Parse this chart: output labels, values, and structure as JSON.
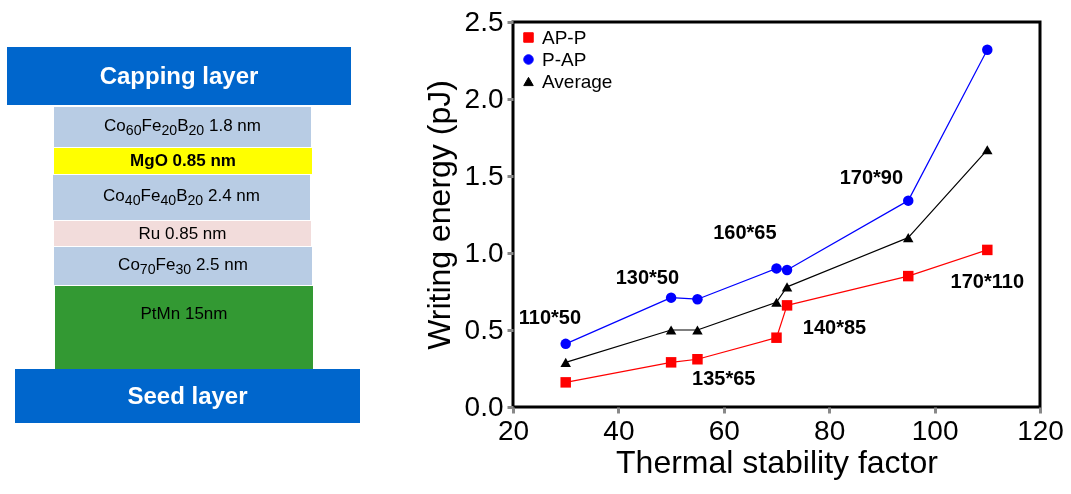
{
  "chart_data": [
    {
      "type": "other",
      "annotations": [
        "Capping layer",
        "Co$_{60}$Fe$_{20}$B$_{20}$ 1.8 nm",
        "MgO 0.85 nm",
        "Co$_{40}$Fe$_{40}$B$_{20}$ 2.4 nm",
        "Ru 0.85 nm",
        "Co$_{70}$Fe$_{30}$ 2.5 nm",
        "PtMn 15nm",
        "Seed layer"
      ]
    },
    {
      "type": "line",
      "xlabel": "Thermal stability factor",
      "ylabel": "Writing energy (pJ)",
      "x": [
        30,
        50,
        55,
        70,
        72,
        95,
        110
      ],
      "series": [
        {
          "name": "AP-P",
          "color": "#ff0000",
          "marker": "square",
          "values": [
            0.16,
            0.29,
            0.31,
            0.45,
            0.66,
            0.85,
            1.02
          ]
        },
        {
          "name": "P-AP",
          "color": "#0000ff",
          "marker": "circle",
          "values": [
            0.41,
            0.71,
            0.7,
            0.9,
            0.89,
            1.34,
            2.32
          ]
        },
        {
          "name": "Average",
          "color": "#000000",
          "marker": "triangle",
          "values": [
            0.29,
            0.5,
            0.5,
            0.68,
            0.78,
            1.1,
            1.67
          ]
        }
      ],
      "xlim": [
        20,
        120
      ],
      "xticks": [
        20,
        40,
        60,
        80,
        100,
        120
      ],
      "ylim": [
        0,
        2.5
      ],
      "yticks": [
        {
          "value": 0,
          "label": "0.0"
        },
        {
          "value": 0.5,
          "label": "0.5"
        },
        {
          "value": 1,
          "label": "1.0"
        },
        {
          "value": 1.5,
          "label": "1.5"
        },
        {
          "value": 2,
          "label": "2.0"
        },
        {
          "value": 2.5,
          "label": "2.5"
        }
      ],
      "grid": false,
      "legend": "top left",
      "line_style": "solid",
      "annotations": [
        "110*50",
        "130*50",
        "160*65",
        "170*90",
        "170*110",
        "140*85",
        "135*65"
      ]
    }
  ]
}
